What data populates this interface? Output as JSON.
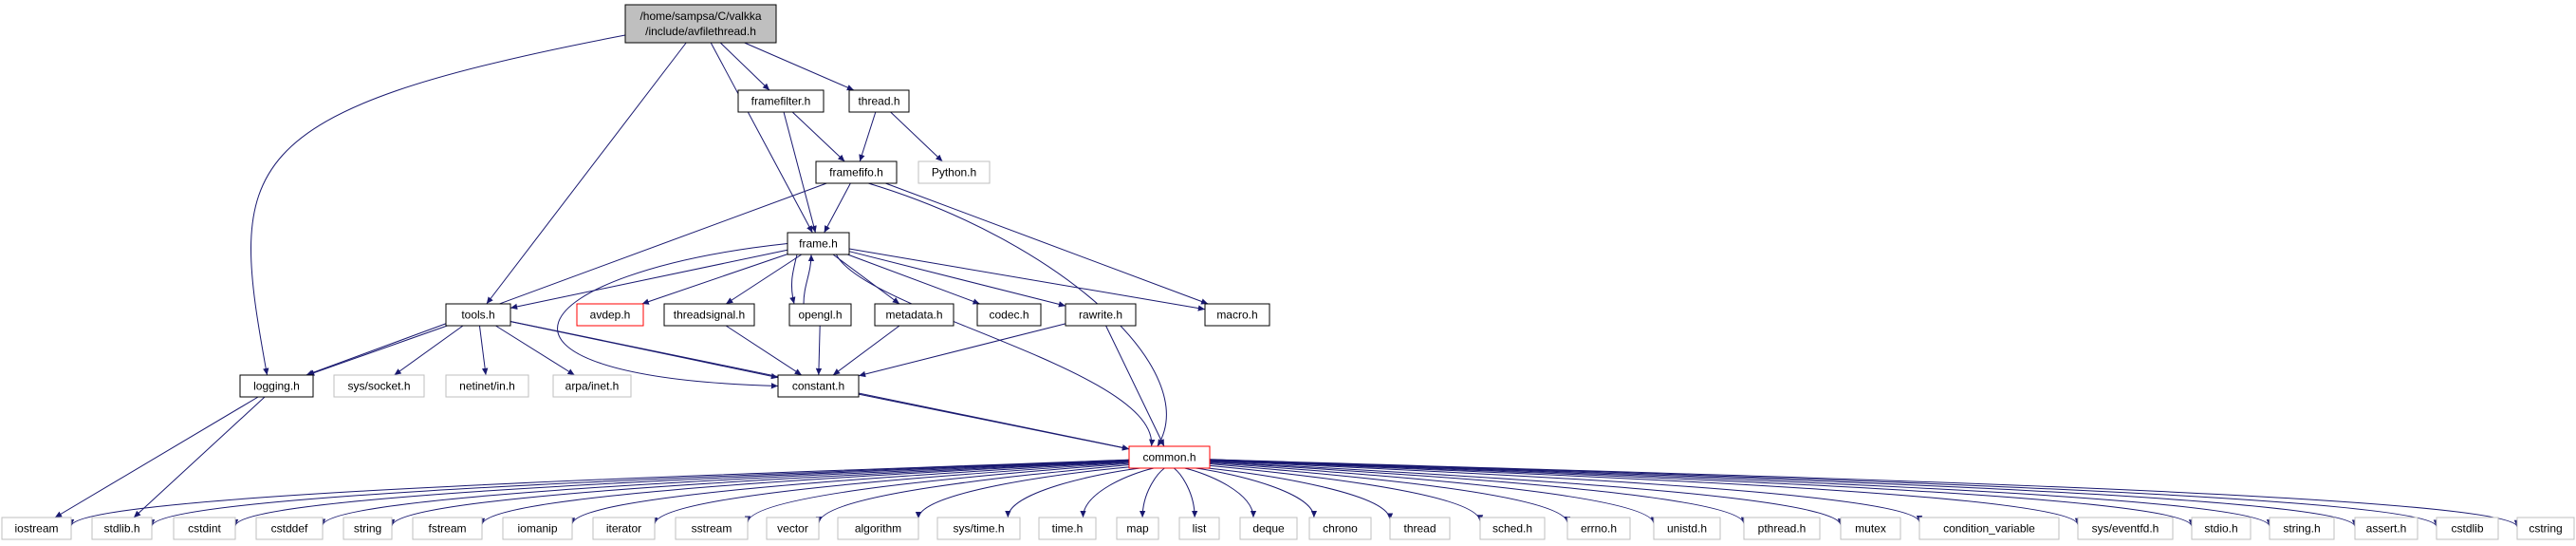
{
  "colors": {
    "edge": "#191970",
    "root_fill": "#bfbfbf",
    "documented_border": "#000000",
    "external_border": "#bfbfbf",
    "missing_border": "#ff0000",
    "missing_text": "#ff0000"
  },
  "nodes": [
    {
      "id": "root",
      "lines": [
        "/home/sampsa/C/valkka",
        "/include/avfilethread.h"
      ],
      "kind": "root"
    },
    {
      "id": "framefilter",
      "lines": [
        "framefilter.h"
      ],
      "kind": "documented"
    },
    {
      "id": "thread",
      "lines": [
        "thread.h"
      ],
      "kind": "documented"
    },
    {
      "id": "framefifo",
      "lines": [
        "framefifo.h"
      ],
      "kind": "documented"
    },
    {
      "id": "python",
      "lines": [
        "Python.h"
      ],
      "kind": "external"
    },
    {
      "id": "frame",
      "lines": [
        "frame.h"
      ],
      "kind": "documented"
    },
    {
      "id": "tools",
      "lines": [
        "tools.h"
      ],
      "kind": "documented"
    },
    {
      "id": "avdep",
      "lines": [
        "avdep.h"
      ],
      "kind": "missing"
    },
    {
      "id": "threadsignal",
      "lines": [
        "threadsignal.h"
      ],
      "kind": "documented"
    },
    {
      "id": "opengl",
      "lines": [
        "opengl.h"
      ],
      "kind": "documented"
    },
    {
      "id": "metadata",
      "lines": [
        "metadata.h"
      ],
      "kind": "documented"
    },
    {
      "id": "codec",
      "lines": [
        "codec.h"
      ],
      "kind": "documented"
    },
    {
      "id": "rawrite",
      "lines": [
        "rawrite.h"
      ],
      "kind": "documented"
    },
    {
      "id": "macro",
      "lines": [
        "macro.h"
      ],
      "kind": "documented"
    },
    {
      "id": "logging",
      "lines": [
        "logging.h"
      ],
      "kind": "documented"
    },
    {
      "id": "syssocket",
      "lines": [
        "sys/socket.h"
      ],
      "kind": "external"
    },
    {
      "id": "netinet",
      "lines": [
        "netinet/in.h"
      ],
      "kind": "external"
    },
    {
      "id": "arpainet",
      "lines": [
        "arpa/inet.h"
      ],
      "kind": "external"
    },
    {
      "id": "constant",
      "lines": [
        "constant.h"
      ],
      "kind": "documented"
    },
    {
      "id": "common",
      "lines": [
        "common.h"
      ],
      "kind": "missing"
    },
    {
      "id": "iostream",
      "lines": [
        "iostream"
      ],
      "kind": "external"
    },
    {
      "id": "stdlib",
      "lines": [
        "stdlib.h"
      ],
      "kind": "external"
    },
    {
      "id": "cstdint",
      "lines": [
        "cstdint"
      ],
      "kind": "external"
    },
    {
      "id": "cstddef",
      "lines": [
        "cstddef"
      ],
      "kind": "external"
    },
    {
      "id": "string",
      "lines": [
        "string"
      ],
      "kind": "external"
    },
    {
      "id": "fstream",
      "lines": [
        "fstream"
      ],
      "kind": "external"
    },
    {
      "id": "iomanip",
      "lines": [
        "iomanip"
      ],
      "kind": "external"
    },
    {
      "id": "iterator",
      "lines": [
        "iterator"
      ],
      "kind": "external"
    },
    {
      "id": "sstream",
      "lines": [
        "sstream"
      ],
      "kind": "external"
    },
    {
      "id": "vector",
      "lines": [
        "vector"
      ],
      "kind": "external"
    },
    {
      "id": "algorithm",
      "lines": [
        "algorithm"
      ],
      "kind": "external"
    },
    {
      "id": "systime",
      "lines": [
        "sys/time.h"
      ],
      "kind": "external"
    },
    {
      "id": "time",
      "lines": [
        "time.h"
      ],
      "kind": "external"
    },
    {
      "id": "map",
      "lines": [
        "map"
      ],
      "kind": "external"
    },
    {
      "id": "list",
      "lines": [
        "list"
      ],
      "kind": "external"
    },
    {
      "id": "deque",
      "lines": [
        "deque"
      ],
      "kind": "external"
    },
    {
      "id": "chrono",
      "lines": [
        "chrono"
      ],
      "kind": "external"
    },
    {
      "id": "threadstd",
      "lines": [
        "thread"
      ],
      "kind": "external"
    },
    {
      "id": "sched",
      "lines": [
        "sched.h"
      ],
      "kind": "external"
    },
    {
      "id": "errno",
      "lines": [
        "errno.h"
      ],
      "kind": "external"
    },
    {
      "id": "unistd",
      "lines": [
        "unistd.h"
      ],
      "kind": "external"
    },
    {
      "id": "pthread",
      "lines": [
        "pthread.h"
      ],
      "kind": "external"
    },
    {
      "id": "mutex",
      "lines": [
        "mutex"
      ],
      "kind": "external"
    },
    {
      "id": "condvar",
      "lines": [
        "condition_variable"
      ],
      "kind": "external"
    },
    {
      "id": "syseventfd",
      "lines": [
        "sys/eventfd.h"
      ],
      "kind": "external"
    },
    {
      "id": "stdio",
      "lines": [
        "stdio.h"
      ],
      "kind": "external"
    },
    {
      "id": "stringh",
      "lines": [
        "string.h"
      ],
      "kind": "external"
    },
    {
      "id": "assert",
      "lines": [
        "assert.h"
      ],
      "kind": "external"
    },
    {
      "id": "cstdlib",
      "lines": [
        "cstdlib"
      ],
      "kind": "external"
    },
    {
      "id": "cstring",
      "lines": [
        "cstring"
      ],
      "kind": "external"
    }
  ],
  "edges": [
    [
      "root",
      "framefilter"
    ],
    [
      "root",
      "thread"
    ],
    [
      "root",
      "frame"
    ],
    [
      "root",
      "tools"
    ],
    [
      "root",
      "logging"
    ],
    [
      "framefilter",
      "framefifo"
    ],
    [
      "framefilter",
      "frame"
    ],
    [
      "thread",
      "framefifo"
    ],
    [
      "thread",
      "python"
    ],
    [
      "framefifo",
      "frame"
    ],
    [
      "framefifo",
      "logging"
    ],
    [
      "framefifo",
      "macro"
    ],
    [
      "framefifo",
      "common"
    ],
    [
      "frame",
      "tools"
    ],
    [
      "frame",
      "avdep"
    ],
    [
      "frame",
      "threadsignal"
    ],
    [
      "frame",
      "opengl"
    ],
    [
      "frame",
      "metadata"
    ],
    [
      "frame",
      "codec"
    ],
    [
      "frame",
      "rawrite"
    ],
    [
      "frame",
      "macro"
    ],
    [
      "frame",
      "common"
    ],
    [
      "frame",
      "constant"
    ],
    [
      "opengl",
      "frame"
    ],
    [
      "opengl",
      "constant"
    ],
    [
      "threadsignal",
      "constant"
    ],
    [
      "metadata",
      "constant"
    ],
    [
      "rawrite",
      "constant"
    ],
    [
      "rawrite",
      "common"
    ],
    [
      "tools",
      "logging"
    ],
    [
      "tools",
      "syssocket"
    ],
    [
      "tools",
      "netinet"
    ],
    [
      "tools",
      "arpainet"
    ],
    [
      "tools",
      "constant"
    ],
    [
      "tools",
      "common"
    ],
    [
      "logging",
      "iostream"
    ],
    [
      "logging",
      "stdlib"
    ],
    [
      "constant",
      "common"
    ],
    [
      "common",
      "iostream"
    ],
    [
      "common",
      "stdlib"
    ],
    [
      "common",
      "cstdint"
    ],
    [
      "common",
      "cstddef"
    ],
    [
      "common",
      "string"
    ],
    [
      "common",
      "fstream"
    ],
    [
      "common",
      "iomanip"
    ],
    [
      "common",
      "iterator"
    ],
    [
      "common",
      "sstream"
    ],
    [
      "common",
      "vector"
    ],
    [
      "common",
      "algorithm"
    ],
    [
      "common",
      "systime"
    ],
    [
      "common",
      "time"
    ],
    [
      "common",
      "map"
    ],
    [
      "common",
      "list"
    ],
    [
      "common",
      "deque"
    ],
    [
      "common",
      "chrono"
    ],
    [
      "common",
      "threadstd"
    ],
    [
      "common",
      "sched"
    ],
    [
      "common",
      "errno"
    ],
    [
      "common",
      "unistd"
    ],
    [
      "common",
      "pthread"
    ],
    [
      "common",
      "mutex"
    ],
    [
      "common",
      "condvar"
    ],
    [
      "common",
      "syseventfd"
    ],
    [
      "common",
      "stdio"
    ],
    [
      "common",
      "stringh"
    ],
    [
      "common",
      "assert"
    ],
    [
      "common",
      "cstdlib"
    ],
    [
      "common",
      "cstring"
    ]
  ]
}
